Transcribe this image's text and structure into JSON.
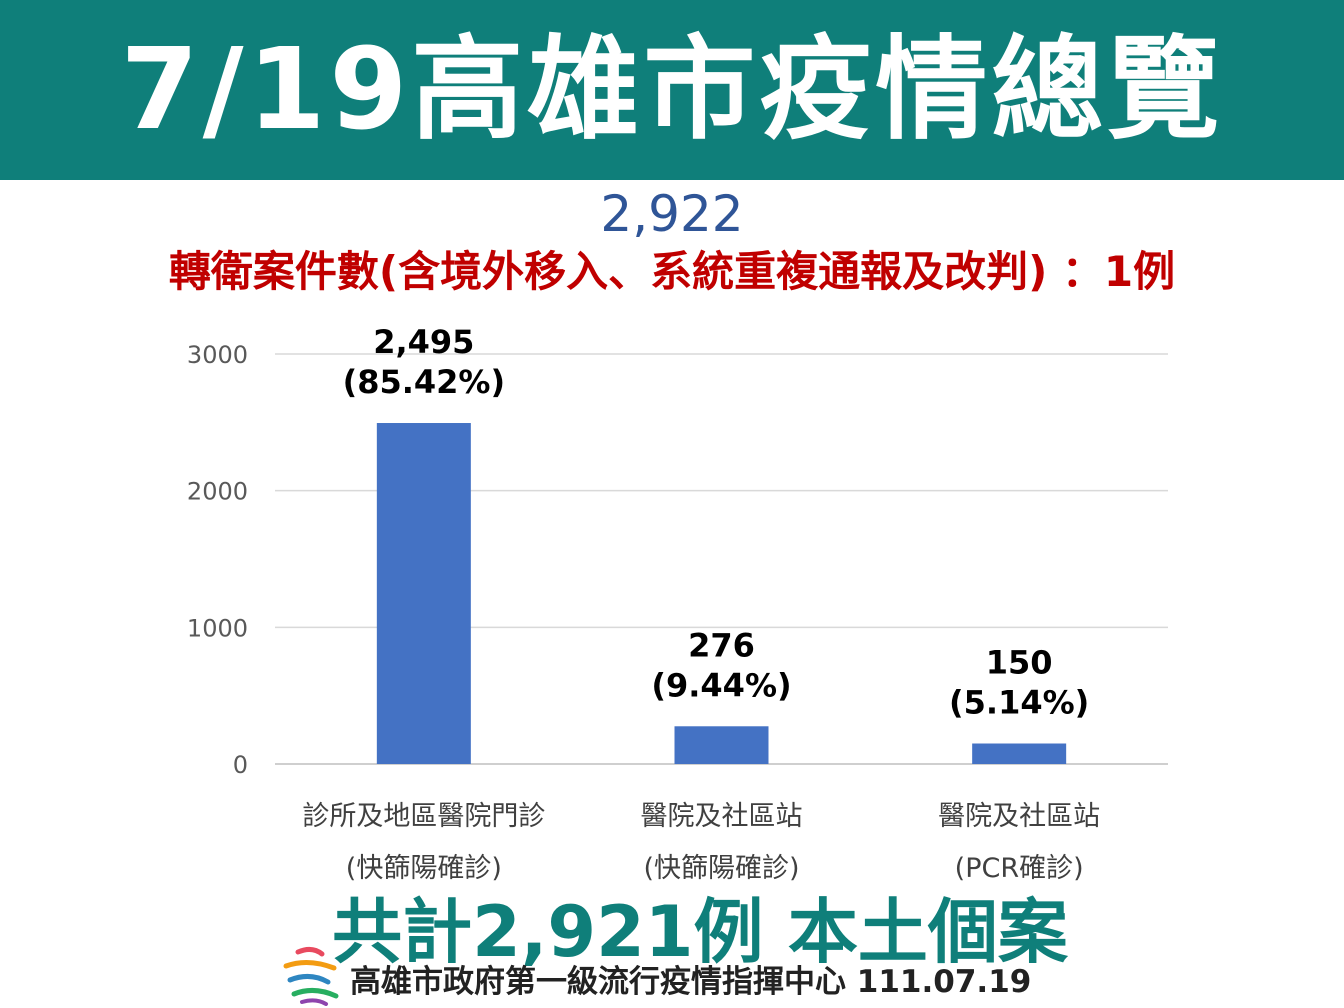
{
  "header": {
    "title": "7/19高雄市疫情總覽"
  },
  "total_label": "2,922",
  "transfer_note": "轉衛案件數(含境外移入、系統重複通報及改判) ：1例",
  "summary": "共計2,921例 本土個案",
  "footer": {
    "org": "高雄市政府第一級流行疫情指揮中心 111.07.19",
    "logo_icon": "kaohsiung-logo-icon"
  },
  "colors": {
    "header_bg": "#0f7f7a",
    "bar": "#4472c4",
    "total_text": "#2f5597",
    "note_text": "#c00000",
    "summary_text": "#0f7f7a"
  },
  "chart_data": {
    "type": "bar",
    "categories": [
      [
        "診所及地區醫院門診",
        "(快篩陽確診)"
      ],
      [
        "醫院及社區站",
        "(快篩陽確診)"
      ],
      [
        "醫院及社區站",
        "(PCR確診)"
      ]
    ],
    "values": [
      2495,
      276,
      150
    ],
    "data_labels": [
      [
        "2,495",
        "(85.42%)"
      ],
      [
        "276",
        "(9.44%)"
      ],
      [
        "150",
        "(5.14%)"
      ]
    ],
    "yticks": [
      "0",
      "1000",
      "2000",
      "3000"
    ],
    "ylim": [
      0,
      3000
    ],
    "grid": true,
    "legend": "none"
  }
}
